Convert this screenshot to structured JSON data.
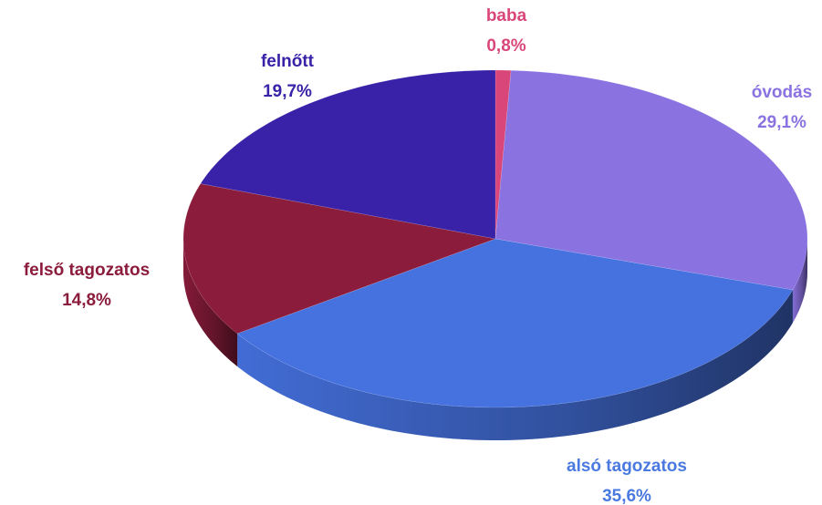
{
  "chart_data": {
    "type": "pie",
    "categories": [
      "baba",
      "óvodás",
      "alsó tagozatos",
      "felső tagozatos",
      "felnőtt"
    ],
    "values": [
      0.8,
      29.1,
      35.6,
      14.8,
      19.7
    ],
    "value_labels": [
      "0,8%",
      "29,1%",
      "35,6%",
      "14,8%",
      "19,7%"
    ],
    "colors": [
      "#d9477a",
      "#8a72e0",
      "#4672e0",
      "#8b1c3c",
      "#3a22a8"
    ]
  }
}
